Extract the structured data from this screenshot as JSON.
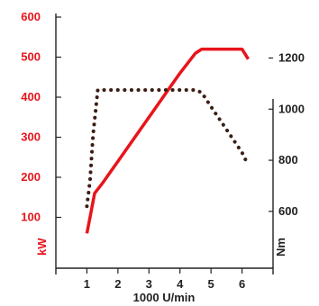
{
  "chart_data": {
    "type": "line",
    "title": "",
    "xlabel": "1000 U/min",
    "x_ticks": [
      "1",
      "2",
      "3",
      "4",
      "5",
      "6"
    ],
    "xlim": [
      0,
      7
    ],
    "y_left": {
      "label": "kW",
      "color": "#e8141b",
      "ticks": [
        "100",
        "200",
        "300",
        "400",
        "500",
        "600"
      ],
      "ylim": [
        0,
        600
      ]
    },
    "y_right": {
      "label": "Nm",
      "color": "#222222",
      "ticks": [
        "600",
        "800",
        "1000",
        "1200"
      ],
      "ylim": [
        420,
        1360
      ]
    },
    "grid": false,
    "legend": "none",
    "series": [
      {
        "axis": "left",
        "style": "solid",
        "color": "#e8141b",
        "x": [
          1.0,
          1.1,
          1.25,
          1.5,
          2.0,
          2.5,
          3.0,
          3.5,
          4.0,
          4.5,
          4.7,
          5.0,
          5.5,
          6.0,
          6.2
        ],
        "y": [
          60,
          100,
          160,
          185,
          240,
          295,
          350,
          405,
          460,
          510,
          520,
          520,
          520,
          520,
          495
        ]
      },
      {
        "axis": "right",
        "style": "dotted",
        "color": "#3a1d14",
        "x": [
          1.0,
          1.1,
          1.2,
          1.35,
          1.5,
          2.0,
          2.5,
          3.0,
          3.5,
          4.0,
          4.5,
          4.7,
          5.0,
          5.5,
          6.0,
          6.2
        ],
        "y": [
          620,
          720,
          900,
          1075,
          1075,
          1075,
          1075,
          1075,
          1075,
          1075,
          1075,
          1065,
          1010,
          920,
          830,
          780
        ]
      }
    ]
  }
}
